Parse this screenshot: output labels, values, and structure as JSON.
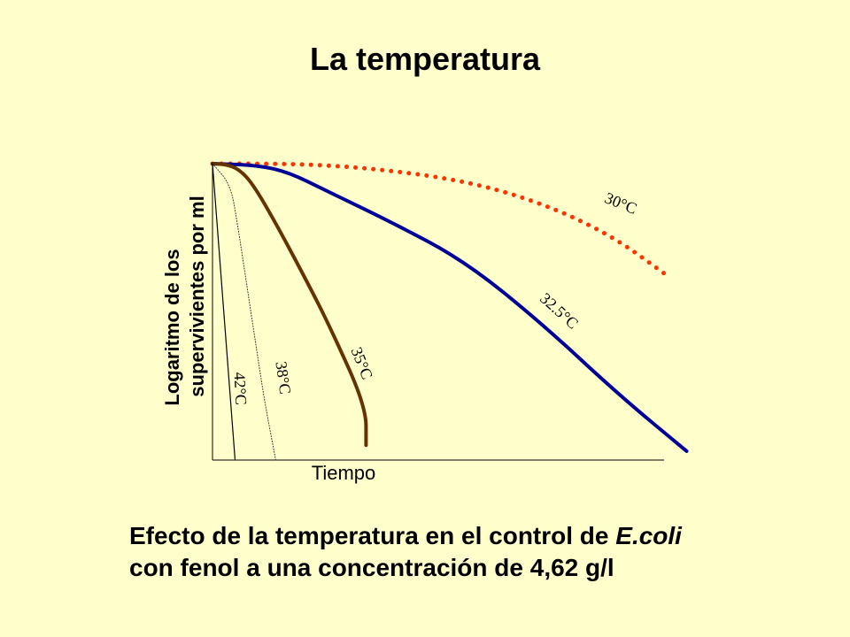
{
  "slide": {
    "title": "La temperatura",
    "caption_part1": "Efecto de la temperatura en el control de ",
    "caption_italic": "E.coli",
    "caption_line2": "con fenol a una concentración de 4,62 g/l"
  },
  "chart_data": {
    "type": "line",
    "title": "",
    "xlabel": "Tiempo",
    "ylabel": "Logaritmo de los supervivientes por ml",
    "xlim": [
      0,
      10
    ],
    "ylim": [
      0,
      10
    ],
    "series": [
      {
        "name": "30°C",
        "color": "#ff3300",
        "style": "dotted",
        "label_at": [
          9.0,
          8.5
        ],
        "points": [
          [
            0,
            10.0
          ],
          [
            1,
            10.0
          ],
          [
            2,
            9.98
          ],
          [
            3,
            9.9
          ],
          [
            4,
            9.75
          ],
          [
            5,
            9.55
          ],
          [
            6,
            9.25
          ],
          [
            7,
            8.8
          ],
          [
            8,
            8.2
          ],
          [
            9,
            7.4
          ],
          [
            10,
            6.3
          ]
        ]
      },
      {
        "name": "32.5°C",
        "color": "#000099",
        "style": "solid",
        "label_at": [
          7.6,
          4.9
        ],
        "points": [
          [
            0,
            10.0
          ],
          [
            1,
            9.95
          ],
          [
            1.7,
            9.7
          ],
          [
            2.5,
            9.1
          ],
          [
            4,
            8.0
          ],
          [
            5.6,
            6.7
          ],
          [
            7.3,
            4.6
          ],
          [
            9.0,
            2.2
          ],
          [
            10.5,
            0.3
          ]
        ]
      },
      {
        "name": "35°C",
        "color": "#663300",
        "style": "solid",
        "label_at": [
          3.2,
          3.2
        ],
        "points": [
          [
            0,
            10.0
          ],
          [
            0.3,
            9.98
          ],
          [
            0.6,
            9.8
          ],
          [
            0.9,
            9.3
          ],
          [
            1.4,
            8.0
          ],
          [
            2.1,
            6.0
          ],
          [
            2.6,
            4.5
          ],
          [
            3.4,
            1.8
          ],
          [
            3.4,
            0.5
          ]
        ]
      },
      {
        "name": "38°C",
        "color": "#333333",
        "style": "dotted",
        "label_at": [
          1.45,
          2.75
        ],
        "points": [
          [
            0,
            10.0
          ],
          [
            0.4,
            9.3
          ],
          [
            0.55,
            8.0
          ],
          [
            0.75,
            6.0
          ],
          [
            0.95,
            4.0
          ],
          [
            1.15,
            2.0
          ],
          [
            1.4,
            0.0
          ]
        ]
      },
      {
        "name": "42°C",
        "color": "#000000",
        "style": "solid",
        "label_at": [
          0.5,
          2.4
        ],
        "points": [
          [
            0,
            10.0
          ],
          [
            0.1,
            8.0
          ],
          [
            0.2,
            6.0
          ],
          [
            0.3,
            4.0
          ],
          [
            0.4,
            2.0
          ],
          [
            0.5,
            0.0
          ]
        ]
      }
    ],
    "grid": false,
    "legend": "none"
  }
}
